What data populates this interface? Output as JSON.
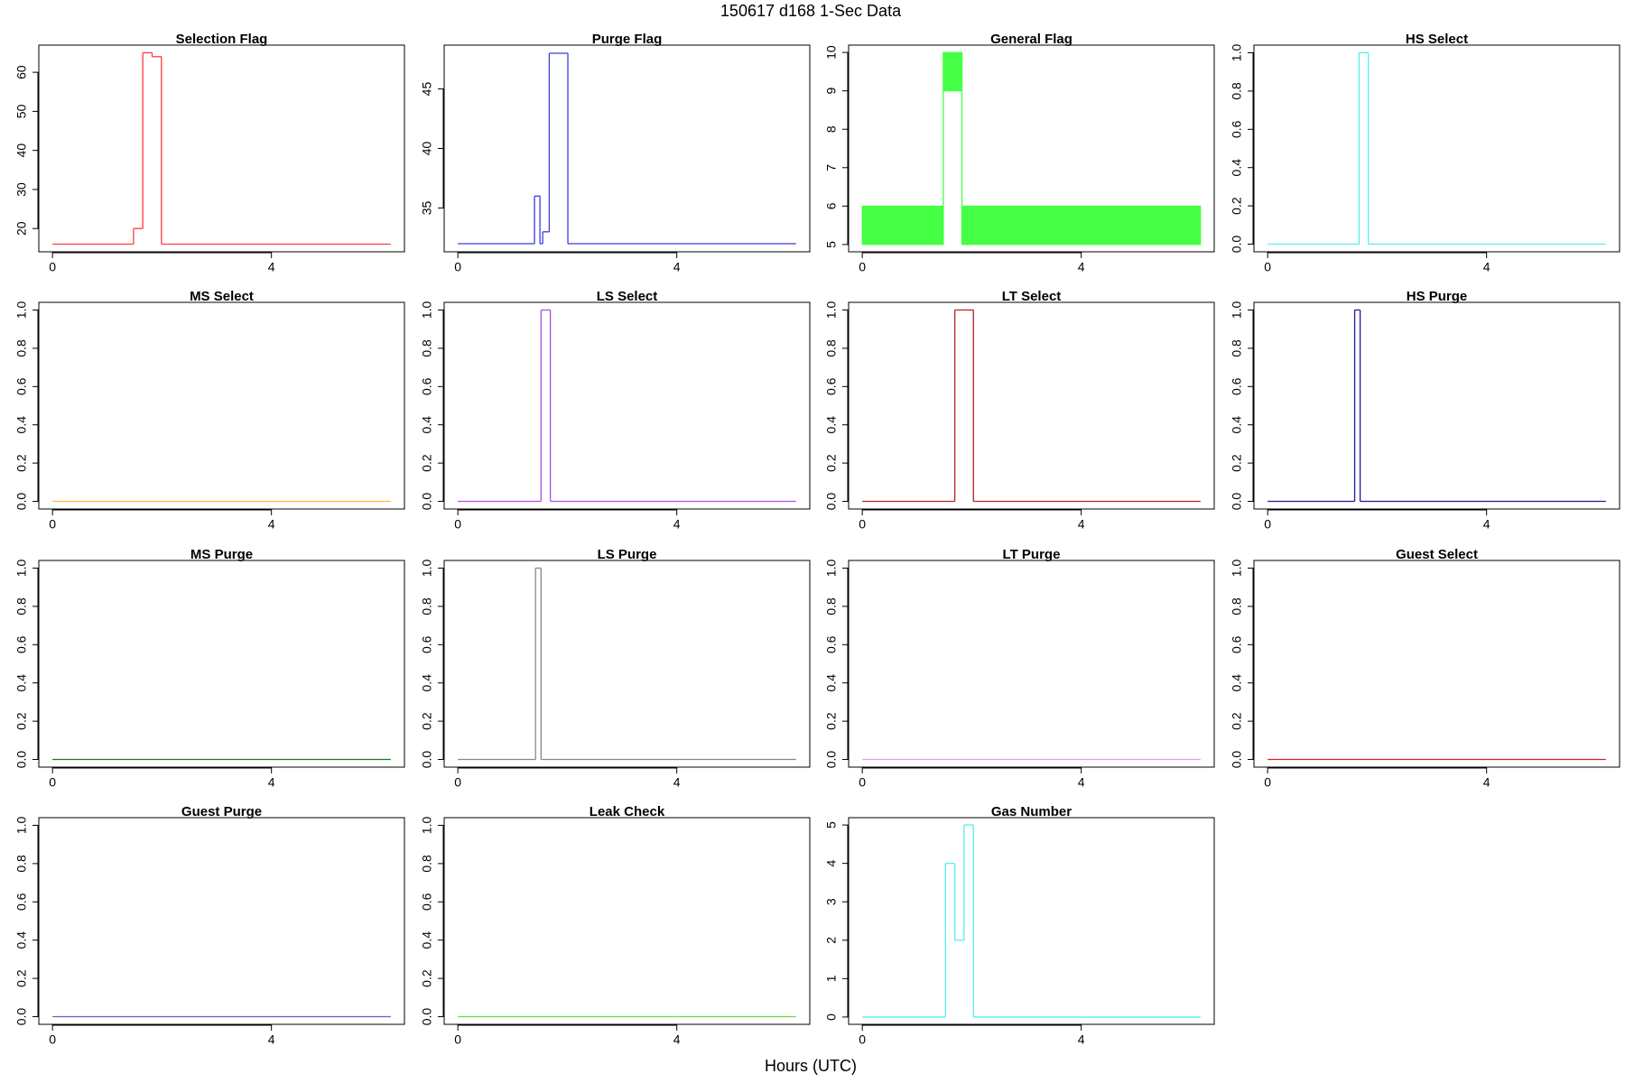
{
  "title": "150617   d168   1-Sec Data",
  "xlabel": "Hours (UTC)",
  "chart_data": [
    {
      "type": "line",
      "title": "Selection Flag",
      "color": "#ff3b3b",
      "x": [
        0,
        1.48,
        1.65,
        1.82,
        1.99,
        6.18
      ],
      "values": [
        16,
        20,
        65,
        64,
        16,
        16
      ],
      "xlim": [
        -0.25,
        6.43
      ],
      "xticks": [
        0,
        4
      ],
      "ylim": [
        14.04,
        66.96
      ],
      "yticks": [
        20,
        30,
        40,
        50,
        60
      ]
    },
    {
      "type": "line",
      "title": "Purge Flag",
      "color": "#3b3bdd",
      "x": [
        0,
        1.4,
        1.5,
        1.55,
        1.67,
        2.01,
        6.18
      ],
      "values": [
        32,
        36,
        32,
        33,
        48,
        32,
        32
      ],
      "xlim": [
        -0.25,
        6.43
      ],
      "xticks": [
        0,
        4
      ],
      "ylim": [
        31.32,
        48.68
      ],
      "yticks": [
        35,
        40,
        45
      ]
    },
    {
      "type": "band",
      "title": "General Flag",
      "color": "#44ff44",
      "bins": [
        0,
        1.48,
        1.82,
        6.18
      ],
      "low": [
        5,
        9,
        5
      ],
      "high": [
        6,
        10,
        6
      ],
      "xlim": [
        -0.25,
        6.43
      ],
      "xticks": [
        0,
        4
      ],
      "ylim": [
        4.81,
        10.19
      ],
      "yticks": [
        5,
        6,
        7,
        8,
        9,
        10
      ]
    },
    {
      "type": "line",
      "title": "HS Select",
      "color": "#55eeee",
      "x": [
        0,
        1.67,
        1.84,
        6.18
      ],
      "values": [
        0,
        1,
        0,
        0
      ],
      "xlim": [
        -0.25,
        6.43
      ],
      "xticks": [
        0,
        4
      ],
      "ylim": [
        -0.04,
        1.04
      ],
      "yticks": [
        {
          "value": 0,
          "label": "0.0"
        },
        0.2,
        0.4,
        0.6,
        0.8,
        {
          "value": 1,
          "label": "1.0"
        }
      ]
    },
    {
      "type": "line",
      "title": "MS Select",
      "color": "#ffb733",
      "x": [
        0,
        6.18
      ],
      "values": [
        0,
        0
      ],
      "xlim": [
        -0.25,
        6.43
      ],
      "xticks": [
        0,
        4
      ],
      "ylim": [
        -0.04,
        1.04
      ],
      "yticks": [
        {
          "value": 0,
          "label": "0.0"
        },
        0.2,
        0.4,
        0.6,
        0.8,
        {
          "value": 1,
          "label": "1.0"
        }
      ]
    },
    {
      "type": "line",
      "title": "LS Select",
      "color": "#b04ee6",
      "x": [
        0,
        1.52,
        1.69,
        6.18
      ],
      "values": [
        0,
        1,
        0,
        0
      ],
      "xlim": [
        -0.25,
        6.43
      ],
      "xticks": [
        0,
        4
      ],
      "ylim": [
        -0.04,
        1.04
      ],
      "yticks": [
        {
          "value": 0,
          "label": "0.0"
        },
        0.2,
        0.4,
        0.6,
        0.8,
        {
          "value": 1,
          "label": "1.0"
        }
      ]
    },
    {
      "type": "line",
      "title": "LT Select",
      "color": "#b22222",
      "x": [
        0,
        1.69,
        2.03,
        6.18
      ],
      "values": [
        0,
        1,
        0,
        0
      ],
      "xlim": [
        -0.25,
        6.43
      ],
      "xticks": [
        0,
        4
      ],
      "ylim": [
        -0.04,
        1.04
      ],
      "yticks": [
        {
          "value": 0,
          "label": "0.0"
        },
        0.2,
        0.4,
        0.6,
        0.8,
        {
          "value": 1,
          "label": "1.0"
        }
      ]
    },
    {
      "type": "line",
      "title": "HS Purge",
      "color": "#1a1a9a",
      "x": [
        0,
        1.59,
        1.69,
        6.18
      ],
      "values": [
        0,
        1,
        0,
        0
      ],
      "xlim": [
        -0.25,
        6.43
      ],
      "xticks": [
        0,
        4
      ],
      "ylim": [
        -0.04,
        1.04
      ],
      "yticks": [
        {
          "value": 0,
          "label": "0.0"
        },
        0.2,
        0.4,
        0.6,
        0.8,
        {
          "value": 1,
          "label": "1.0"
        }
      ]
    },
    {
      "type": "line",
      "title": "MS Purge",
      "color": "#1a7a1a",
      "x": [
        0,
        6.18
      ],
      "values": [
        0,
        0
      ],
      "xlim": [
        -0.25,
        6.43
      ],
      "xticks": [
        0,
        4
      ],
      "ylim": [
        -0.04,
        1.04
      ],
      "yticks": [
        {
          "value": 0,
          "label": "0.0"
        },
        0.2,
        0.4,
        0.6,
        0.8,
        {
          "value": 1,
          "label": "1.0"
        }
      ]
    },
    {
      "type": "line",
      "title": "LS Purge",
      "color": "#888888",
      "x": [
        0,
        1.42,
        1.52,
        6.18
      ],
      "values": [
        0,
        1,
        0,
        0
      ],
      "xlim": [
        -0.25,
        6.43
      ],
      "xticks": [
        0,
        4
      ],
      "ylim": [
        -0.04,
        1.04
      ],
      "yticks": [
        {
          "value": 0,
          "label": "0.0"
        },
        0.2,
        0.4,
        0.6,
        0.8,
        {
          "value": 1,
          "label": "1.0"
        }
      ]
    },
    {
      "type": "line",
      "title": "LT Purge",
      "color": "#ee99ee",
      "x": [
        0,
        6.18
      ],
      "values": [
        0,
        0
      ],
      "xlim": [
        -0.25,
        6.43
      ],
      "xticks": [
        0,
        4
      ],
      "ylim": [
        -0.04,
        1.04
      ],
      "yticks": [
        {
          "value": 0,
          "label": "0.0"
        },
        0.2,
        0.4,
        0.6,
        0.8,
        {
          "value": 1,
          "label": "1.0"
        }
      ]
    },
    {
      "type": "line",
      "title": "Guest Select",
      "color": "#dd2222",
      "x": [
        0,
        6.18
      ],
      "values": [
        0,
        0
      ],
      "xlim": [
        -0.25,
        6.43
      ],
      "xticks": [
        0,
        4
      ],
      "ylim": [
        -0.04,
        1.04
      ],
      "yticks": [
        {
          "value": 0,
          "label": "0.0"
        },
        0.2,
        0.4,
        0.6,
        0.8,
        {
          "value": 1,
          "label": "1.0"
        }
      ]
    },
    {
      "type": "line",
      "title": "Guest Purge",
      "color": "#6a5acd",
      "x": [
        0,
        6.18
      ],
      "values": [
        0,
        0
      ],
      "xlim": [
        -0.25,
        6.43
      ],
      "xticks": [
        0,
        4
      ],
      "ylim": [
        -0.04,
        1.04
      ],
      "yticks": [
        {
          "value": 0,
          "label": "0.0"
        },
        0.2,
        0.4,
        0.6,
        0.8,
        {
          "value": 1,
          "label": "1.0"
        }
      ]
    },
    {
      "type": "line",
      "title": "Leak Check",
      "color": "#66dd44",
      "x": [
        0,
        6.18
      ],
      "values": [
        0,
        0
      ],
      "xlim": [
        -0.25,
        6.43
      ],
      "xticks": [
        0,
        4
      ],
      "ylim": [
        -0.04,
        1.04
      ],
      "yticks": [
        {
          "value": 0,
          "label": "0.0"
        },
        0.2,
        0.4,
        0.6,
        0.8,
        {
          "value": 1,
          "label": "1.0"
        }
      ]
    },
    {
      "type": "line",
      "title": "Gas Number",
      "color": "#55eeee",
      "x": [
        0,
        1.52,
        1.69,
        1.86,
        2.03,
        6.18
      ],
      "values": [
        0,
        4,
        2,
        5,
        0,
        0
      ],
      "xlim": [
        -0.25,
        6.43
      ],
      "xticks": [
        0,
        4
      ],
      "ylim": [
        -0.19,
        5.19
      ],
      "yticks": [
        0,
        1,
        2,
        3,
        4,
        5
      ]
    }
  ]
}
